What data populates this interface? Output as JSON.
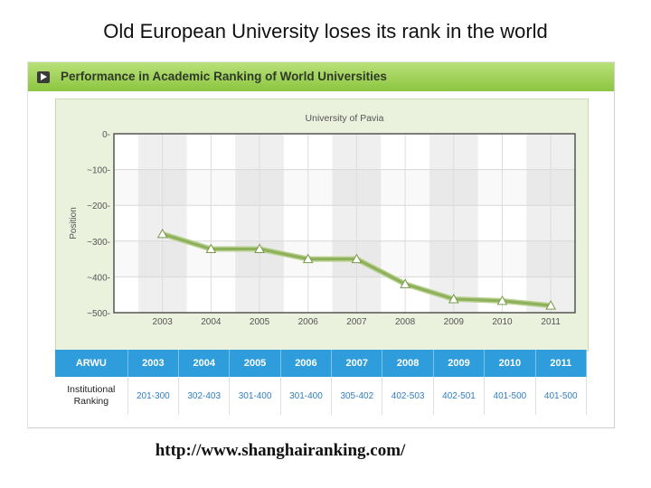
{
  "slide": {
    "title": "Old European University loses its rank in the world",
    "footer_url": "http://www.shanghairanking.com/"
  },
  "panel": {
    "header": "Performance in Academic Ranking of World Universities",
    "header_color": "#8cc63f"
  },
  "chart_data": {
    "type": "line",
    "title": "University of Pavia",
    "ylabel": "Position",
    "x": [
      "2003",
      "2004",
      "2005",
      "2006",
      "2007",
      "2008",
      "2009",
      "2010",
      "2011"
    ],
    "yticks": [
      "0-",
      "~100-",
      "~200-",
      "~300-",
      "~400-",
      "~500-"
    ],
    "ylim": [
      0,
      -500
    ],
    "series": [
      {
        "values": [
          -280,
          -322,
          -322,
          -350,
          -350,
          -420,
          -462,
          -467,
          -480
        ],
        "color": "#8db05a"
      }
    ],
    "grid": true
  },
  "table": {
    "headers": [
      "ARWU",
      "2003",
      "2004",
      "2005",
      "2006",
      "2007",
      "2008",
      "2009",
      "2010",
      "2011"
    ],
    "row_label_lines": [
      "Institutional",
      "Ranking"
    ],
    "row_values": [
      "201-300",
      "302-403",
      "301-400",
      "301-400",
      "305-402",
      "402-503",
      "402-501",
      "401-500",
      "401-500"
    ],
    "header_color": "#2f9ddb"
  }
}
